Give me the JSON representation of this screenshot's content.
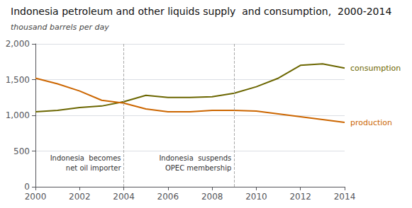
{
  "chart_data": {
    "type": "line",
    "title": "Indonesia petroleum and other liquids supply  and consumption,  2000-2014",
    "subtitle": "thousand barrels per day",
    "x": [
      2000,
      2001,
      2002,
      2003,
      2004,
      2005,
      2006,
      2007,
      2008,
      2009,
      2010,
      2011,
      2012,
      2013,
      2014
    ],
    "series": [
      {
        "name": "consumption",
        "color": "#6b6600",
        "values": [
          1050,
          1070,
          1110,
          1130,
          1190,
          1280,
          1250,
          1250,
          1260,
          1310,
          1400,
          1520,
          1700,
          1720,
          1660
        ]
      },
      {
        "name": "production",
        "color": "#cc6600",
        "values": [
          1520,
          1440,
          1340,
          1210,
          1170,
          1090,
          1050,
          1050,
          1070,
          1070,
          1060,
          1020,
          980,
          940,
          900
        ]
      }
    ],
    "annotations": [
      {
        "x": 2004,
        "color": "#aaaaaa",
        "texts": [
          "Indonesia  becomes",
          "net oil importer"
        ]
      },
      {
        "x": 2009,
        "color": "#aaaaaa",
        "texts": [
          "Indonesia  suspends",
          "OPEC membership"
        ]
      }
    ],
    "xlim": [
      2000,
      2014
    ],
    "xticks": [
      2000,
      2002,
      2004,
      2006,
      2008,
      2010,
      2012,
      2014
    ],
    "ylim": [
      0,
      2000
    ],
    "yticks": [
      0,
      500,
      {
        "value": 1000,
        "label": "1,000"
      },
      {
        "value": 1500,
        "label": "1,500"
      },
      {
        "value": 2000,
        "label": "2,000"
      }
    ],
    "grid": true
  }
}
